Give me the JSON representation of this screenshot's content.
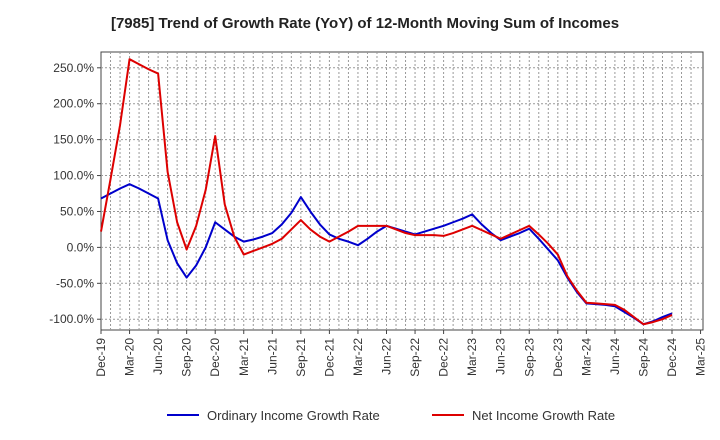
{
  "chart_data": {
    "type": "line",
    "title": "[7985]  Trend of Growth Rate (YoY) of 12-Month Moving Sum of Incomes",
    "xlabel": "",
    "ylabel": "",
    "x_tick_labels": [
      "Dec-19",
      "Mar-20",
      "Jun-20",
      "Sep-20",
      "Dec-20",
      "Mar-21",
      "Jun-21",
      "Sep-21",
      "Dec-21",
      "Mar-22",
      "Jun-22",
      "Sep-22",
      "Dec-22",
      "Mar-23",
      "Jun-23",
      "Sep-23",
      "Dec-23",
      "Mar-24",
      "Jun-24",
      "Sep-24",
      "Dec-24",
      "Mar-25"
    ],
    "y_ticks": [
      -100,
      -50,
      0,
      50,
      100,
      150,
      200,
      250
    ],
    "y_tick_labels": [
      "-100.0%",
      "-50.0%",
      "0.0%",
      "50.0%",
      "100.0%",
      "150.0%",
      "200.0%",
      "250.0%"
    ],
    "ylim": [
      -115,
      272
    ],
    "grid": true,
    "legend_position": "bottom",
    "x": [
      "2019-12",
      "2020-01",
      "2020-02",
      "2020-03",
      "2020-04",
      "2020-05",
      "2020-06",
      "2020-07",
      "2020-08",
      "2020-09",
      "2020-10",
      "2020-11",
      "2020-12",
      "2021-01",
      "2021-02",
      "2021-03",
      "2021-04",
      "2021-05",
      "2021-06",
      "2021-07",
      "2021-08",
      "2021-09",
      "2021-10",
      "2021-11",
      "2021-12",
      "2022-01",
      "2022-02",
      "2022-03",
      "2022-04",
      "2022-05",
      "2022-06",
      "2022-07",
      "2022-08",
      "2022-09",
      "2022-10",
      "2022-11",
      "2022-12",
      "2023-01",
      "2023-02",
      "2023-03",
      "2023-04",
      "2023-05",
      "2023-06",
      "2023-07",
      "2023-08",
      "2023-09",
      "2023-10",
      "2023-11",
      "2023-12",
      "2024-01",
      "2024-02",
      "2024-03",
      "2024-04",
      "2024-05",
      "2024-06",
      "2024-07",
      "2024-08",
      "2024-09",
      "2024-10",
      "2024-11",
      "2024-12"
    ],
    "series": [
      {
        "name": "Ordinary Income Growth Rate",
        "color": "#0000cc",
        "values": [
          68,
          75,
          82,
          88,
          82,
          75,
          68,
          10,
          -22,
          -42,
          -25,
          0,
          35,
          25,
          15,
          8,
          11,
          15,
          20,
          32,
          48,
          70,
          50,
          32,
          18,
          12,
          8,
          3,
          12,
          22,
          30,
          26,
          22,
          18,
          22,
          26,
          30,
          35,
          40,
          46,
          32,
          20,
          10,
          15,
          20,
          26,
          12,
          -3,
          -18,
          -42,
          -62,
          -78,
          -79,
          -80,
          -82,
          -90,
          -98,
          -107,
          -103,
          -97,
          -92
        ]
      },
      {
        "name": "Net Income Growth Rate",
        "color": "#dd0000",
        "values": [
          22,
          95,
          170,
          262,
          255,
          248,
          242,
          105,
          35,
          -3,
          30,
          80,
          155,
          60,
          15,
          -10,
          -5,
          0,
          5,
          12,
          25,
          38,
          25,
          15,
          8,
          15,
          22,
          30,
          30,
          30,
          30,
          25,
          20,
          17,
          17,
          17,
          16,
          20,
          25,
          30,
          24,
          18,
          12,
          18,
          24,
          30,
          18,
          5,
          -10,
          -40,
          -60,
          -77,
          -78,
          -79,
          -80,
          -87,
          -97,
          -107,
          -104,
          -100,
          -94
        ]
      }
    ]
  }
}
